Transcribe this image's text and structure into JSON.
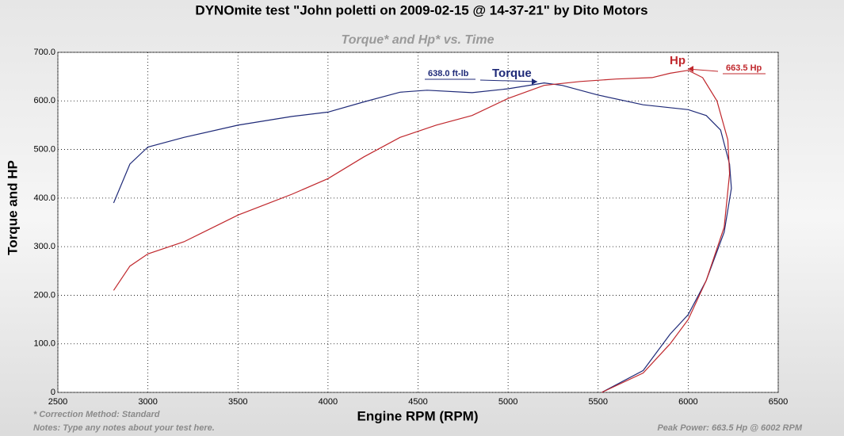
{
  "chart_data": {
    "type": "line",
    "title": "DYNOmite test \"John poletti on 2009-02-15 @ 14-37-21\" by Dito Motors",
    "subtitle": "Torque* and Hp* vs. Time",
    "x_label": "Engine RPM (RPM)",
    "y_label": "Torque and HP",
    "xlim": [
      2500,
      6500
    ],
    "xticks": [
      2500,
      3000,
      3500,
      4000,
      4500,
      5000,
      5500,
      6000,
      6500
    ],
    "ylim": [
      0,
      700
    ],
    "yticks": [
      0,
      {
        "value": 100,
        "label": "100.0"
      },
      {
        "value": 200,
        "label": "200.0"
      },
      {
        "value": 300,
        "label": "300.0"
      },
      {
        "value": 400,
        "label": "400.0"
      },
      {
        "value": 500,
        "label": "500.0"
      },
      {
        "value": 600,
        "label": "600.0"
      },
      {
        "value": 700,
        "label": "700.0"
      }
    ],
    "grid": true,
    "series": [
      {
        "name": "Torque",
        "color": "#1f2a78",
        "x": [
          2810,
          2900,
          3000,
          3200,
          3500,
          3800,
          4000,
          4200,
          4400,
          4550,
          4800,
          5000,
          5200,
          5300,
          5500,
          5750,
          6000,
          6100,
          6180,
          6230,
          6240,
          6200,
          6100,
          6000,
          5900,
          5750,
          5520
        ],
        "values": [
          390,
          470,
          505,
          525,
          550,
          568,
          577,
          598,
          618,
          622,
          617,
          625,
          637,
          632,
          612,
          592,
          582,
          570,
          540,
          470,
          420,
          330,
          230,
          160,
          120,
          45,
          0
        ]
      },
      {
        "name": "Hp",
        "color": "#c0282d",
        "x": [
          2810,
          2900,
          3000,
          3200,
          3500,
          3800,
          4000,
          4200,
          4400,
          4600,
          4800,
          5000,
          5200,
          5400,
          5600,
          5800,
          5900,
          6000,
          6080,
          6160,
          6220,
          6230,
          6200,
          6100,
          6000,
          5900,
          5750,
          5520
        ],
        "values": [
          210,
          260,
          285,
          310,
          365,
          408,
          440,
          485,
          525,
          550,
          570,
          605,
          632,
          640,
          645,
          648,
          657,
          663,
          648,
          600,
          520,
          450,
          340,
          230,
          150,
          100,
          40,
          0
        ]
      }
    ],
    "annotations": [
      {
        "text": "638.0 ft-lb"
      },
      {
        "text": "663.5 Hp"
      }
    ],
    "notes": [
      "* Correction Method: Standard",
      "Notes: Type any notes about your test here.",
      "Peak Power: 663.5 Hp @ 6002 RPM"
    ]
  }
}
